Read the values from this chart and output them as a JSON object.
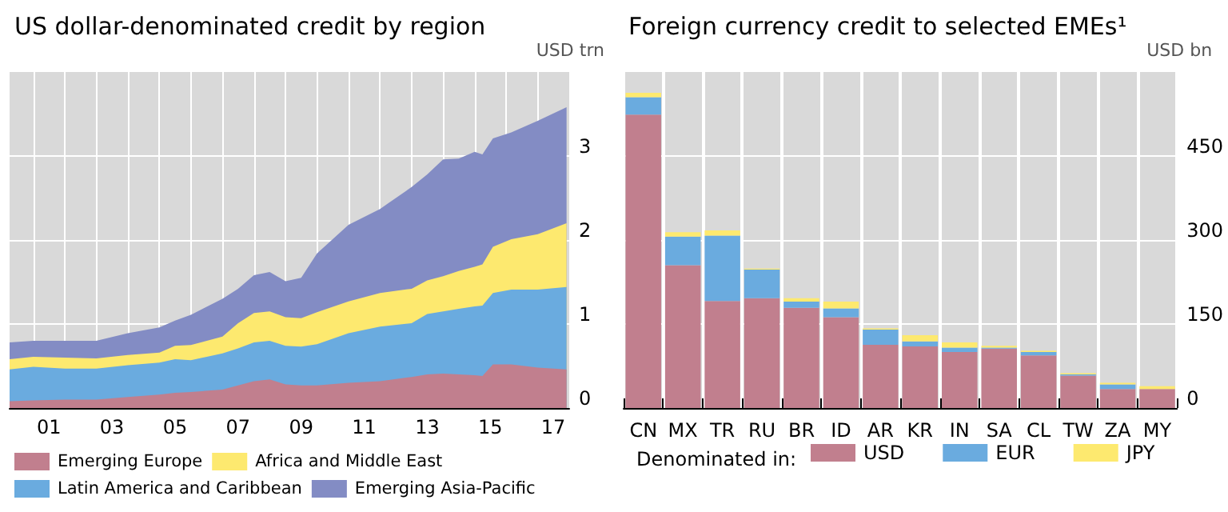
{
  "chart_data": [
    {
      "type": "area",
      "title": "US dollar-denominated credit by region",
      "ylabel": "USD trn",
      "stacked": true,
      "grid": true,
      "legend": "bottom",
      "x": [
        "2000-04",
        "2001-01",
        "2002-01",
        "2003-01",
        "2004-01",
        "2005-01",
        "2005-07",
        "2006-01",
        "2007-01",
        "2007-07",
        "2008-01",
        "2008-07",
        "2009-01",
        "2009-07",
        "2010-01",
        "2011-01",
        "2012-01",
        "2013-01",
        "2013-07",
        "2014-01",
        "2014-07",
        "2015-01",
        "2015-04",
        "2015-08",
        "2016-03",
        "2017-01",
        "2017-12"
      ],
      "xlim": [
        "2000-04",
        "2018-01"
      ],
      "xticks": [
        {
          "value": "2001-01",
          "label": null
        },
        {
          "value": "2001-07",
          "label": "01"
        },
        {
          "value": "2002-01",
          "label": null
        },
        {
          "value": "2003-01",
          "label": null
        },
        {
          "value": "2003-07",
          "label": "03"
        },
        {
          "value": "2004-01",
          "label": null
        },
        {
          "value": "2005-01",
          "label": null
        },
        {
          "value": "2005-07",
          "label": "05"
        },
        {
          "value": "2006-01",
          "label": null
        },
        {
          "value": "2007-01",
          "label": null
        },
        {
          "value": "2007-07",
          "label": "07"
        },
        {
          "value": "2008-01",
          "label": null
        },
        {
          "value": "2009-01",
          "label": null
        },
        {
          "value": "2009-07",
          "label": "09"
        },
        {
          "value": "2010-01",
          "label": null
        },
        {
          "value": "2011-01",
          "label": null
        },
        {
          "value": "2011-07",
          "label": "11"
        },
        {
          "value": "2012-01",
          "label": null
        },
        {
          "value": "2013-01",
          "label": null
        },
        {
          "value": "2013-07",
          "label": "13"
        },
        {
          "value": "2014-01",
          "label": null
        },
        {
          "value": "2015-01",
          "label": null
        },
        {
          "value": "2015-07",
          "label": "15"
        },
        {
          "value": "2016-01",
          "label": null
        },
        {
          "value": "2017-01",
          "label": null
        },
        {
          "value": "2017-07",
          "label": "17"
        }
      ],
      "ylim": [
        0,
        4
      ],
      "yticks": [
        0,
        1,
        2,
        3
      ],
      "series": [
        {
          "name": "Emerging Europe",
          "color": "#c17f8e",
          "values": [
            0.08,
            0.09,
            0.1,
            0.1,
            0.13,
            0.16,
            0.18,
            0.19,
            0.22,
            0.27,
            0.32,
            0.34,
            0.28,
            0.27,
            0.27,
            0.3,
            0.32,
            0.37,
            0.4,
            0.41,
            0.4,
            0.39,
            0.38,
            0.52,
            0.52,
            0.48,
            0.46
          ]
        },
        {
          "name": "Latin America and Caribbean",
          "color": "#6aabdf",
          "values": [
            0.38,
            0.4,
            0.37,
            0.37,
            0.38,
            0.38,
            0.4,
            0.38,
            0.43,
            0.44,
            0.46,
            0.46,
            0.46,
            0.46,
            0.49,
            0.59,
            0.65,
            0.64,
            0.72,
            0.74,
            0.78,
            0.82,
            0.84,
            0.85,
            0.89,
            0.93,
            0.98
          ]
        },
        {
          "name": "Africa and Middle East",
          "color": "#fde96f",
          "values": [
            0.12,
            0.12,
            0.13,
            0.12,
            0.12,
            0.12,
            0.16,
            0.18,
            0.2,
            0.3,
            0.35,
            0.35,
            0.34,
            0.34,
            0.38,
            0.38,
            0.4,
            0.41,
            0.4,
            0.42,
            0.45,
            0.47,
            0.49,
            0.55,
            0.6,
            0.66,
            0.76
          ]
        },
        {
          "name": "Emerging Asia-Pacific",
          "color": "#838cc4",
          "values": [
            0.2,
            0.19,
            0.2,
            0.21,
            0.26,
            0.3,
            0.3,
            0.36,
            0.45,
            0.41,
            0.45,
            0.47,
            0.43,
            0.48,
            0.7,
            0.91,
            1.0,
            1.21,
            1.26,
            1.39,
            1.34,
            1.37,
            1.31,
            1.29,
            1.27,
            1.35,
            1.38
          ]
        }
      ]
    },
    {
      "type": "bar",
      "title": "Foreign currency credit to selected EMEs¹",
      "ylabel": "USD bn",
      "stacked": true,
      "grid": true,
      "legend": "bottom",
      "legend_title": "Denominated in:",
      "categories": [
        "CN",
        "MX",
        "TR",
        "RU",
        "BR",
        "ID",
        "AR",
        "KR",
        "IN",
        "SA",
        "CL",
        "TW",
        "ZA",
        "MY"
      ],
      "ylim": [
        0,
        600
      ],
      "yticks": [
        0,
        150,
        300,
        450
      ],
      "series": [
        {
          "name": "USD",
          "color": "#c17f8e",
          "values": [
            524,
            255,
            191,
            196,
            179,
            162,
            113,
            110,
            100,
            106,
            94,
            58,
            34,
            34
          ]
        },
        {
          "name": "EUR",
          "color": "#6aabdf",
          "values": [
            31,
            51,
            117,
            51,
            11,
            16,
            27,
            9,
            8,
            2,
            6,
            2,
            8,
            null
          ]
        },
        {
          "name": "JPY",
          "color": "#fde96f",
          "values": [
            8,
            8,
            9,
            2,
            6,
            12,
            2,
            11,
            9,
            3,
            2,
            2,
            3,
            5
          ]
        }
      ]
    }
  ]
}
